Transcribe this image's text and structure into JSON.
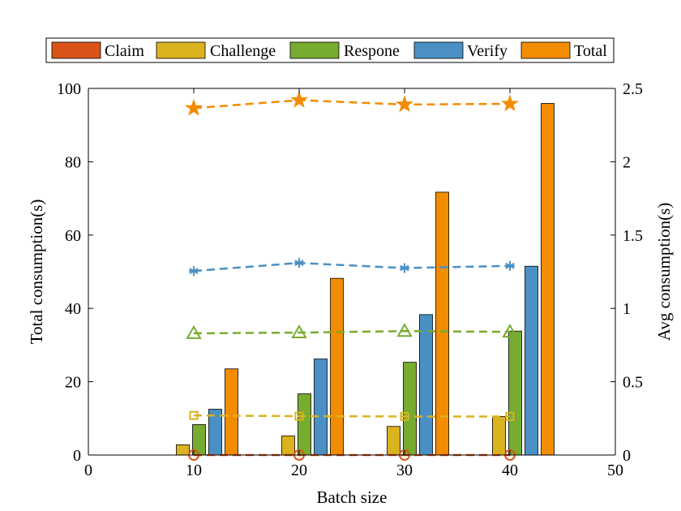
{
  "chart_data": {
    "type": "bar",
    "title": "",
    "xlabel": "Batch size",
    "ylabel": "Total consumption(s)",
    "y2label": "Avg consumption(s)",
    "xlim": [
      0,
      50
    ],
    "ylim": [
      0,
      100
    ],
    "y2lim": [
      0,
      2.5
    ],
    "xticks": [
      "0",
      "10",
      "20",
      "30",
      "40",
      "50"
    ],
    "yticks": [
      "0",
      "20",
      "40",
      "60",
      "80",
      "100"
    ],
    "y2ticks": [
      "0",
      "0.5",
      "1",
      "1.5",
      "2",
      "2.5"
    ],
    "grid": false,
    "legend_position": "top",
    "x": [
      10,
      20,
      30,
      40
    ],
    "bar_series": [
      {
        "name": "Claim",
        "color": "#D95319",
        "values": [
          0,
          0,
          0,
          0
        ]
      },
      {
        "name": "Challenge",
        "color": "#DBB21F",
        "values": [
          2.8,
          5.2,
          7.8,
          10.5
        ]
      },
      {
        "name": "Respone",
        "color": "#77AC30",
        "values": [
          8.3,
          16.7,
          25.3,
          33.8
        ]
      },
      {
        "name": "Verify",
        "color": "#4A90C4",
        "values": [
          12.5,
          26.2,
          38.3,
          51.5
        ]
      },
      {
        "name": "Total",
        "color": "#F28C00",
        "values": [
          23.5,
          48.2,
          71.7,
          95.9
        ]
      }
    ],
    "line_series": [
      {
        "name": "Claim avg",
        "color": "#D95319",
        "marker": "circle",
        "values": [
          0.0,
          0.0,
          0.0,
          0.0
        ]
      },
      {
        "name": "Challenge avg",
        "color": "#DBB21F",
        "marker": "square",
        "values": [
          0.27,
          0.265,
          0.263,
          0.263
        ]
      },
      {
        "name": "Respone avg",
        "color": "#77AC30",
        "marker": "triangle",
        "values": [
          0.83,
          0.835,
          0.845,
          0.84
        ]
      },
      {
        "name": "Verify avg",
        "color": "#4A90C4",
        "marker": "asterisk",
        "values": [
          1.255,
          1.31,
          1.275,
          1.29
        ]
      },
      {
        "name": "Total avg",
        "color": "#F28C00",
        "marker": "star",
        "values": [
          2.365,
          2.42,
          2.39,
          2.395
        ]
      }
    ]
  }
}
